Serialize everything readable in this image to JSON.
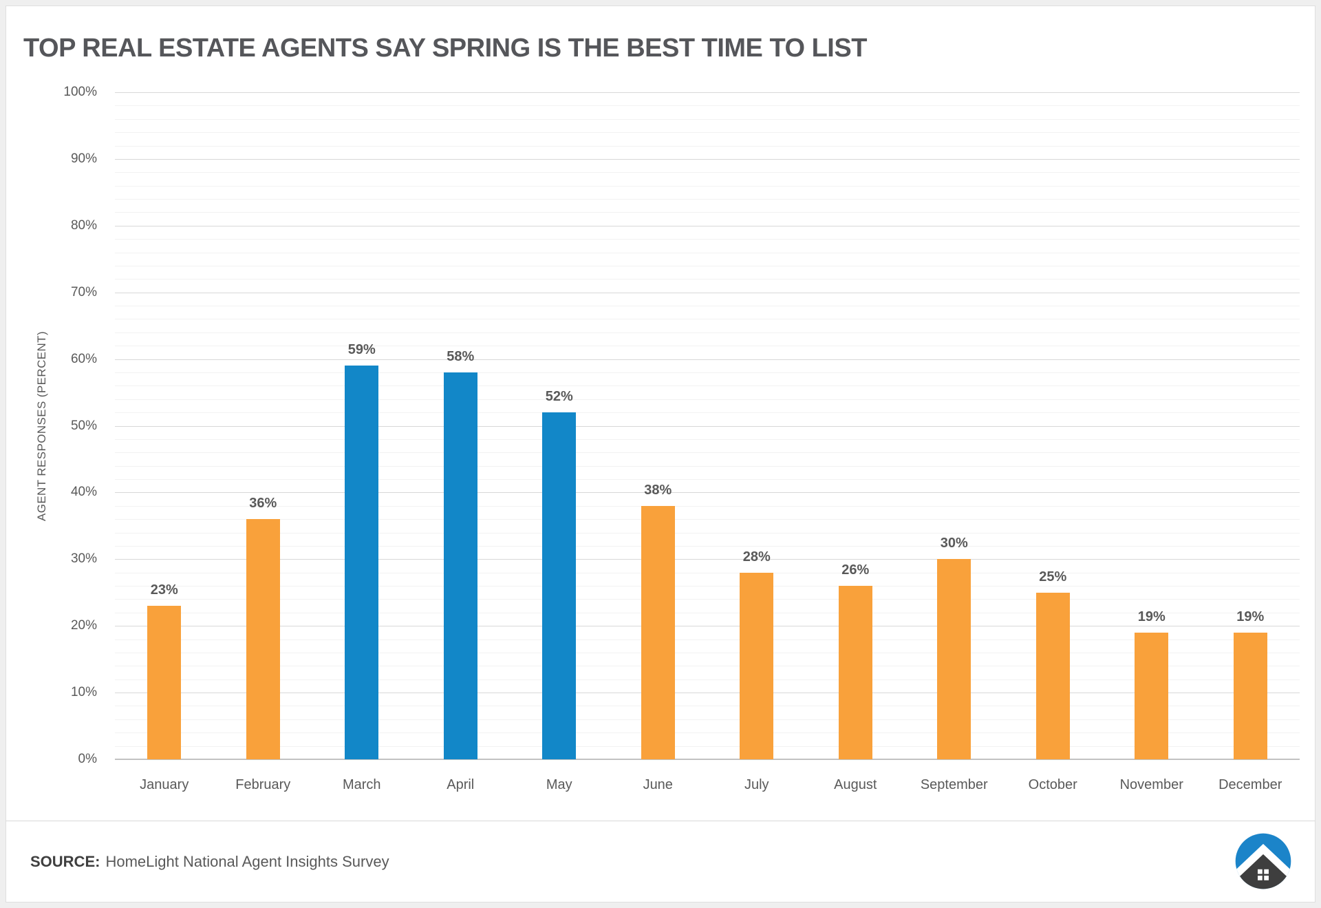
{
  "page": {
    "background_color": "#EFEFEF",
    "card_background": "#FFFFFF",
    "card_border_color": "#DEDEDE"
  },
  "header": {
    "title": "TOP REAL ESTATE AGENTS SAY SPRING IS THE BEST TIME TO LIST"
  },
  "footer": {
    "source_label": "SOURCE:",
    "source_text": "HomeLight National Agent Insights Survey",
    "logo": {
      "circle_color": "#1B84C9",
      "house_color": "#3E3E3E",
      "chevron_color": "#FFFFFF",
      "window_color": "#FFFFFF"
    }
  },
  "chart_data": {
    "type": "bar",
    "title": "TOP REAL ESTATE AGENTS SAY SPRING IS THE BEST TIME TO LIST",
    "xlabel": "",
    "ylabel": "AGENT RESPONSES (PERCENT)",
    "ylim": [
      0,
      100
    ],
    "grid": {
      "major_step": 10,
      "minor_step": 2,
      "major_color": "#D8D8D8",
      "minor_color": "#F2F2F2",
      "baseline_color": "#C2C2C2"
    },
    "yticks": [
      {
        "value": 0,
        "label": "0%"
      },
      {
        "value": 10,
        "label": "10%"
      },
      {
        "value": 20,
        "label": "20%"
      },
      {
        "value": 30,
        "label": "30%"
      },
      {
        "value": 40,
        "label": "40%"
      },
      {
        "value": 50,
        "label": "50%"
      },
      {
        "value": 60,
        "label": "60%"
      },
      {
        "value": 70,
        "label": "70%"
      },
      {
        "value": 80,
        "label": "80%"
      },
      {
        "value": 90,
        "label": "90%"
      },
      {
        "value": 100,
        "label": "100%"
      }
    ],
    "categories": [
      "January",
      "February",
      "March",
      "April",
      "May",
      "June",
      "July",
      "August",
      "September",
      "October",
      "November",
      "December"
    ],
    "values": [
      23,
      36,
      59,
      58,
      52,
      38,
      28,
      26,
      30,
      25,
      19,
      19
    ],
    "data_labels": [
      "23%",
      "36%",
      "59%",
      "58%",
      "52%",
      "38%",
      "28%",
      "26%",
      "30%",
      "25%",
      "19%",
      "19%"
    ],
    "bar_colors": [
      "orange",
      "orange",
      "blue",
      "blue",
      "blue",
      "orange",
      "orange",
      "orange",
      "orange",
      "orange",
      "orange",
      "orange"
    ],
    "palette": {
      "orange": "#F9A13B",
      "blue": "#1287C8"
    },
    "legend_position": "none",
    "gridlines": "on"
  }
}
